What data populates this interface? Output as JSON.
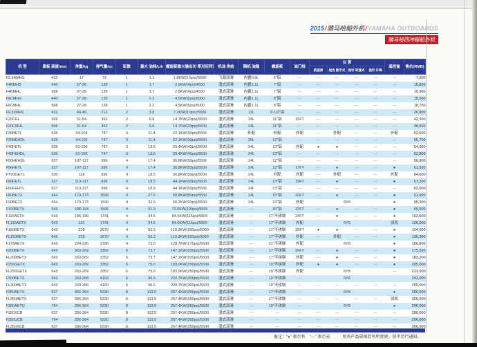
{
  "header_meta": {
    "year": "2015",
    "separator": "/",
    "series_cn": "雅马哈船外机",
    "series_en": "YAMAHA OUTBOARDS",
    "badge": "雅马哈四冲程船外机"
  },
  "table": {
    "columns": {
      "model": "机  型",
      "transom": "尾板\n高度/mm",
      "weight": "净重/kg",
      "displacement": "排气量/cc",
      "cylinders": "缸数",
      "fuel": "最大\n油耗/L/h",
      "power": "螺旋桨最大输出功\n率对应转速(r/m)",
      "oil": "机油\n供给",
      "tank": "随机\n油箱",
      "propeller": "螺旋桨",
      "throttle": "油门线",
      "instruments_group": "仪  表",
      "inst_speed": "航速表",
      "inst_digital": "组合\n数字式",
      "inst_pointer": "指针\n转速式",
      "inst_trim": "指针\n升降",
      "remote": "遥控盒",
      "price": "售价(RMB)"
    },
    "rows": [
      {
        "m": "F2.5AMHS",
        "h": "432",
        "w": "17",
        "d": "72",
        "c": "1",
        "f": "1.1",
        "p": "1.8KW(2.5ps)/5500",
        "o": "飞溅润滑",
        "t": "内置0.9L",
        "pr": "6\"铝",
        "tc": "—",
        "i": [
          "—",
          "—",
          "—",
          "—"
        ],
        "r": "—",
        "s": "7,500"
      },
      {
        "m": "F4BMHS",
        "h": "440",
        "w": "27-28",
        "d": "139",
        "c": "1",
        "f": "1.7",
        "p": "2.9KW(4ps)/4500",
        "o": "湿式润滑",
        "t": "内置1.1L",
        "pr": "7\"铝",
        "tc": "—",
        "i": [
          "—",
          "—",
          "—",
          "—"
        ],
        "r": "—",
        "s": "15,800"
      },
      {
        "m": "F4BMHL",
        "h": "568",
        "w": "27-28",
        "d": "139",
        "c": "1",
        "f": "1.7",
        "p": "2.9KW(4ps)/4500",
        "o": "湿式润滑",
        "t": "内置1.1L",
        "pr": "7\"铝",
        "tc": "—",
        "i": [
          "—",
          "—",
          "—",
          "—"
        ],
        "r": "—",
        "s": "15,900"
      },
      {
        "m": "F6CMHS",
        "h": "440",
        "w": "27-28",
        "d": "139",
        "c": "1",
        "f": "2.2",
        "p": "4.5KW(6ps)/5000",
        "o": "湿式润滑",
        "t": "内置1.1L",
        "pr": "8\"铝",
        "tc": "—",
        "i": [
          "—",
          "—",
          "—",
          "—"
        ],
        "r": "—",
        "s": "18,500"
      },
      {
        "m": "F6CMHL",
        "h": "568",
        "w": "27-28",
        "d": "139",
        "c": "1",
        "f": "2.2",
        "p": "4.5KW(6ps)/5000",
        "o": "湿式润滑",
        "t": "内置1.1L",
        "pr": "8\"铝",
        "tc": "—",
        "i": [
          "—",
          "—",
          "—",
          "—"
        ],
        "r": "—",
        "s": "18,700"
      },
      {
        "m": "F9.9JMHS",
        "h": "431",
        "w": "40-46",
        "d": "212",
        "c": "2",
        "f": "3.8",
        "p": "7.3KW(9.9ps)/5500",
        "o": "湿式润滑",
        "t": "12L",
        "pr": "8-1/2\"铝",
        "tc": "—",
        "i": [
          "—",
          "—",
          "—",
          "—"
        ],
        "r": "—",
        "s": "26,800"
      },
      {
        "m": "F20CEL",
        "h": "565",
        "w": "51-54",
        "d": "362",
        "c": "2",
        "f": "6.8",
        "p": "14.7KW(20ps)/5500",
        "o": "湿式润滑",
        "t": "24L",
        "pr": "11\"铝",
        "tc": "15FT",
        "i": [
          "—",
          "—",
          "—",
          "—"
        ],
        "r": "—",
        "s": "42,300"
      },
      {
        "m": "F20CMHL",
        "h": "565",
        "w": "51-54",
        "d": "362",
        "c": "2",
        "f": "6.8",
        "p": "14.7KW(20ps)/5500",
        "o": "湿式润滑",
        "t": "24L",
        "pr": "11\"铝",
        "tc": "—",
        "i": [
          "—",
          "—",
          "—",
          "—"
        ],
        "r": "—",
        "s": "38,500"
      },
      {
        "m": "F30BETL",
        "h": "536",
        "w": "94-104",
        "d": "747",
        "c": "3",
        "f": "11.4",
        "p": "22.1KW(30ps)/5500",
        "o": "湿式润滑",
        "t": "外配",
        "pr": "外配",
        "tc": "外配",
        "i": [
          "—",
          "外配",
          "—",
          "—"
        ],
        "r": "外配",
        "s": "52,600"
      },
      {
        "m": "F30BEHDL",
        "h": "536",
        "w": "94-106",
        "d": "747",
        "c": "3",
        "f": "11.4",
        "p": "22.1KW(30ps)/5500",
        "o": "湿式润滑",
        "t": "25L",
        "pr": "12\"铝",
        "tc": "—",
        "i": [
          "—",
          "—",
          "—",
          "—"
        ],
        "r": "—",
        "s": "50,700"
      },
      {
        "m": "F40FETL",
        "h": "536",
        "w": "91-106",
        "d": "747",
        "c": "3",
        "f": "13.6",
        "p": "29.4KW(40ps)/5500",
        "o": "湿式润滑",
        "t": "24L",
        "pr": "13\"铝",
        "tc": "外配",
        "i": [
          "●",
          "●",
          "—",
          "—"
        ],
        "r": "—",
        "s": "54,900"
      },
      {
        "m": "F40FEHDL",
        "h": "536",
        "w": "91-106",
        "d": "747",
        "c": "3",
        "f": "13.6",
        "p": "29.4KW(40ps)/5500",
        "o": "湿式润滑",
        "t": "24L",
        "pr": "13\"铝",
        "tc": "—",
        "i": [
          "—",
          "—",
          "—",
          "—"
        ],
        "r": "—",
        "s": "52,800"
      },
      {
        "m": "F50HEHDL",
        "h": "527",
        "w": "107-117",
        "d": "996",
        "c": "4",
        "f": "17.4",
        "p": "36.8KW(50ps)/5500",
        "o": "湿式润滑",
        "t": "24L",
        "pr": "12\"铝",
        "tc": "—",
        "i": [
          "—",
          "—",
          "—",
          "—"
        ],
        "r": "—",
        "s": "56,800"
      },
      {
        "m": "F50HETL",
        "h": "527",
        "w": "107-117",
        "d": "996",
        "c": "4",
        "f": "17.4",
        "p": "36.8KW(50ps)/5500",
        "o": "湿式润滑",
        "t": "24L",
        "pr": "12\"铝",
        "tc": "17FT",
        "i": [
          "—",
          "●",
          "—",
          "—"
        ],
        "r": "●",
        "s": "61,500"
      },
      {
        "m": "FT50GETL",
        "h": "530",
        "w": "118",
        "d": "996",
        "c": "4",
        "f": "18.5",
        "p": "36.8KW(50ps)/5500",
        "o": "湿式润滑",
        "t": "24L",
        "pr": "外配",
        "tc": "外配",
        "i": [
          "—",
          "外配",
          "—",
          "—"
        ],
        "r": "外配",
        "s": "64,600"
      },
      {
        "m": "F60FETL",
        "h": "527",
        "w": "113-117",
        "d": "996",
        "c": "4",
        "f": "18.9",
        "p": "44.1KW(60ps)/5500",
        "o": "湿式润滑",
        "t": "24L",
        "pr": "13\"铝",
        "tc": "19FT",
        "i": [
          "—",
          "●",
          "—",
          "—"
        ],
        "r": "●",
        "s": "67,200"
      },
      {
        "m": "F60FEHTL",
        "h": "527",
        "w": "113-117",
        "d": "996",
        "c": "4",
        "f": "18.9",
        "p": "44.1KW(60ps)/5500",
        "o": "湿式润滑",
        "t": "24L",
        "pr": "13\"铝",
        "tc": "—",
        "i": [
          "—",
          "—",
          "—",
          "—"
        ],
        "r": "—",
        "s": "63,000"
      },
      {
        "m": "F80BETX",
        "h": "664",
        "w": "170-173",
        "d": "1596",
        "c": "4",
        "f": "27.6",
        "p": "58.8KW(80ps)/5500",
        "o": "湿式润滑",
        "t": "24L",
        "pr": "15\"铝",
        "tc": "20FT",
        "i": [
          "—",
          "●",
          "—",
          "—"
        ],
        "r": "●",
        "s": "91,500"
      },
      {
        "m": "F90BETX",
        "h": "664",
        "w": "170-173",
        "d": "1596",
        "c": "4",
        "f": "32.6",
        "p": "66.2KW(90ps)/5500",
        "o": "湿式润滑",
        "t": "24L",
        "pr": "19\"铝",
        "tc": "外配",
        "i": "6Y8",
        "r": "●",
        "s": "95,300"
      },
      {
        "m": "F100BETX",
        "h": "643",
        "w": "188-194",
        "d": "1596",
        "c": "4",
        "f": "31.9",
        "p": "73.6KW(100ps)/5500",
        "o": "湿式润滑",
        "t": "—",
        "pr": "15\"铝",
        "tc": "22FT",
        "i": [
          "—",
          "●",
          "—",
          "—"
        ],
        "r": "●",
        "s": "99,500"
      },
      {
        "m": "F115AETX",
        "h": "643",
        "w": "186-199",
        "d": "1741",
        "c": "4",
        "f": "34.5",
        "p": "84.6KW(115ps)/5500",
        "o": "湿式润滑",
        "t": "—",
        "pr": "17\"不锈钢",
        "tc": "24FT",
        "i": [
          "—",
          "●",
          "—",
          "—"
        ],
        "r": "●",
        "s": "103,600"
      },
      {
        "m": "FL115AETX",
        "h": "643",
        "w": "191",
        "d": "1741",
        "c": "4",
        "f": "34.5",
        "p": "84.6KW(115ps)/5500",
        "o": "湿式润滑",
        "t": "—",
        "pr": "17\"不锈钢",
        "tc": "外配",
        "i": "6Y5",
        "r": "双机",
        "s": "120,000"
      },
      {
        "m": "F150BETX",
        "h": "643",
        "w": "229",
        "d": "2670",
        "c": "4",
        "f": "56.3",
        "p": "110.3KW(150ps)/5000",
        "o": "湿式润滑",
        "t": "—",
        "pr": "17\"不锈钢",
        "tc": "26FT",
        "i": [
          "●",
          "●",
          "—",
          "—"
        ],
        "r": "●",
        "s": "124,000"
      },
      {
        "m": "FL150BETX",
        "h": "643",
        "w": "229",
        "d": "2670",
        "c": "4",
        "f": "55.3",
        "p": "110.3KW(150ps)/5000",
        "o": "湿式润滑",
        "t": "—",
        "pr": "17\"不锈钢",
        "tc": "外配",
        "i": [
          "—",
          "外配",
          "—",
          "—"
        ],
        "r": "●",
        "s": "136,300"
      },
      {
        "m": "F175AETX",
        "h": "643",
        "w": "224-226",
        "d": "2785",
        "c": "4",
        "f": "72.0",
        "p": "128.7KW(175ps)/5500",
        "o": "湿式润滑",
        "t": "—",
        "pr": "21\"不锈钢",
        "tc": "外配",
        "i": "6Y8",
        "r": "●",
        "s": "150,800"
      },
      {
        "m": "F200BETX",
        "h": "643",
        "w": "263-269",
        "d": "3352",
        "c": "6",
        "f": "73.7",
        "p": "147.1KW(200ps)/5500",
        "o": "湿式润滑",
        "t": "—",
        "pr": "17\"不锈钢",
        "tc": "26FT",
        "i": [
          "—",
          "●",
          "—",
          "—"
        ],
        "r": "●",
        "s": "175,500"
      },
      {
        "m": "FL200BETX",
        "h": "643",
        "w": "263-269",
        "d": "3352",
        "c": "6",
        "f": "73.7",
        "p": "147.1KW(200ps)/5500",
        "o": "湿式润滑",
        "t": "—",
        "pr": "17\"不锈钢",
        "tc": "外配",
        "i": [
          "—",
          "●",
          "—",
          "—"
        ],
        "r": "●",
        "s": "183,200"
      },
      {
        "m": "F250GETX",
        "h": "643",
        "w": "263-269",
        "d": "3352",
        "c": "6",
        "f": "75.6",
        "p": "183.9KW(250ps)/5500",
        "o": "湿式润滑",
        "t": "—",
        "pr": "19\"不锈钢",
        "tc": "外配",
        "i": [
          "●",
          "●",
          "—",
          "—"
        ],
        "r": "●",
        "s": "205,000"
      },
      {
        "m": "FL250GETX",
        "h": "643",
        "w": "263-269",
        "d": "3352",
        "c": "6",
        "f": "75.6",
        "p": "183.9KW(250ps)/5500",
        "o": "湿式润滑",
        "t": "—",
        "pr": "19\"不锈钢",
        "tc": "外配",
        "i": "6Y8",
        "r": "—",
        "s": "223,000"
      },
      {
        "m": "F300BETX",
        "h": "643",
        "w": "260-268",
        "d": "4169",
        "c": "6",
        "f": "96.6",
        "p": "220.7KW(300ps)/5500",
        "o": "湿式润滑",
        "t": "—",
        "pr": "19\"不锈钢",
        "tc": "—",
        "i": "6Y8",
        "r": "",
        "s": "243,000"
      },
      {
        "m": "FL300BETX",
        "h": "643",
        "w": "260-268",
        "d": "4169",
        "c": "6",
        "f": "96.6",
        "p": "220.7KW(300ps)/5500",
        "o": "湿式润滑",
        "t": "—",
        "pr": "19\"不锈钢",
        "tc": "—",
        "i": [
          "—",
          "—",
          "—",
          "—"
        ],
        "r": "—",
        "s": "255,000"
      },
      {
        "m": "F350AETX",
        "h": "637",
        "w": "356-364",
        "d": "5330",
        "c": "8",
        "f": "113.5",
        "p": "257.4KW(350ps)/5500",
        "o": "湿式润滑",
        "t": "—",
        "pr": "17\"不锈钢",
        "tc": "—",
        "i": "6Y8",
        "r": "●",
        "s": "280,000"
      },
      {
        "m": "FL350AETX",
        "h": "637",
        "w": "356-364",
        "d": "5330",
        "c": "8",
        "f": "113.5",
        "p": "257.4KW(350ps)/5500",
        "o": "湿式润滑",
        "t": "—",
        "pr": "17\"不锈钢",
        "tc": "—",
        "i": [
          "—",
          "—",
          "—",
          "—"
        ],
        "r": "双机",
        "s": "300,000"
      },
      {
        "m": "F350AETU",
        "h": "764",
        "w": "356-364",
        "d": "5330",
        "c": "8",
        "f": "113.5",
        "p": "257.4KW(350ps)/5500",
        "o": "湿式润滑",
        "t": "—",
        "pr": "19\"不锈钢",
        "tc": "—",
        "i": "6Y8",
        "r": "●",
        "s": "290,000"
      },
      {
        "m": "F350XCB",
        "h": "637",
        "w": "356-364",
        "d": "5330",
        "c": "8",
        "f": "113.5",
        "p": "257.4KW(350ps)/5500",
        "o": "湿式润滑",
        "t": "—",
        "pr": "—",
        "tc": "—",
        "i": [
          "—",
          "—",
          "—",
          "—"
        ],
        "r": "—",
        "s": "280,000"
      },
      {
        "m": "F350UCB",
        "h": "764",
        "w": "356-364",
        "d": "5330",
        "c": "8",
        "f": "113.5",
        "p": "257.4KW(350ps)/5500",
        "o": "湿式润滑",
        "t": "—",
        "pr": "—",
        "tc": "—",
        "i": [
          "—",
          "—",
          "—",
          "—"
        ],
        "r": "—",
        "s": "290,000"
      },
      {
        "m": "FL350XCB",
        "h": "637",
        "w": "356-364",
        "d": "5330",
        "c": "8",
        "f": "113.5",
        "p": "257.4KW(350ps)/5500",
        "o": "湿式润滑",
        "t": "—",
        "pr": "—",
        "tc": "—",
        "i": [
          "—",
          "—",
          "—",
          "—"
        ],
        "r": "—",
        "s": "300,000"
      }
    ]
  },
  "footer": {
    "note_left": "备注：\"●\" 表示有　\"—\" 表示无",
    "note_right": "所有产品规格若有所变更，恕不另行通知。"
  }
}
